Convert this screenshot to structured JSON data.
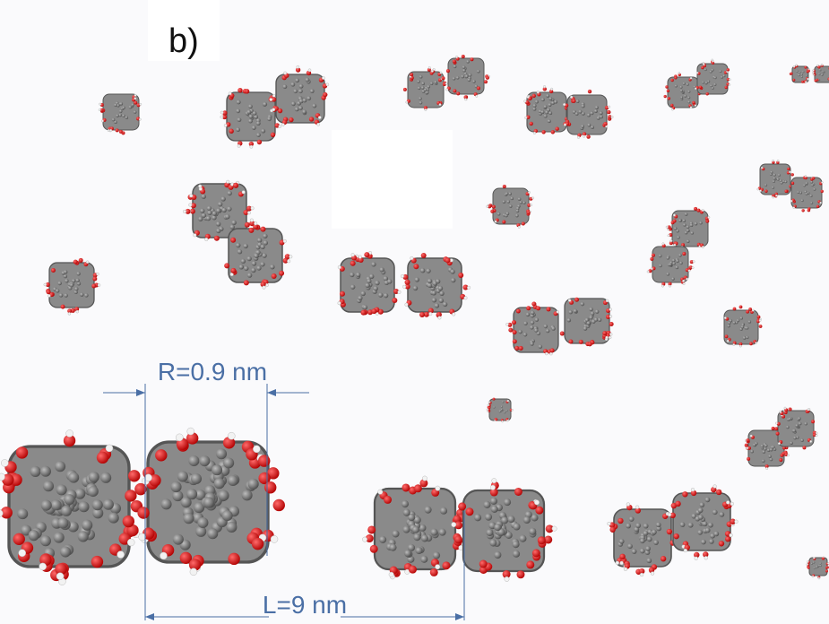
{
  "panel_label": "b)",
  "annotations": {
    "radius": "R=0.9 nm",
    "distance": "L=9 nm"
  }
}
